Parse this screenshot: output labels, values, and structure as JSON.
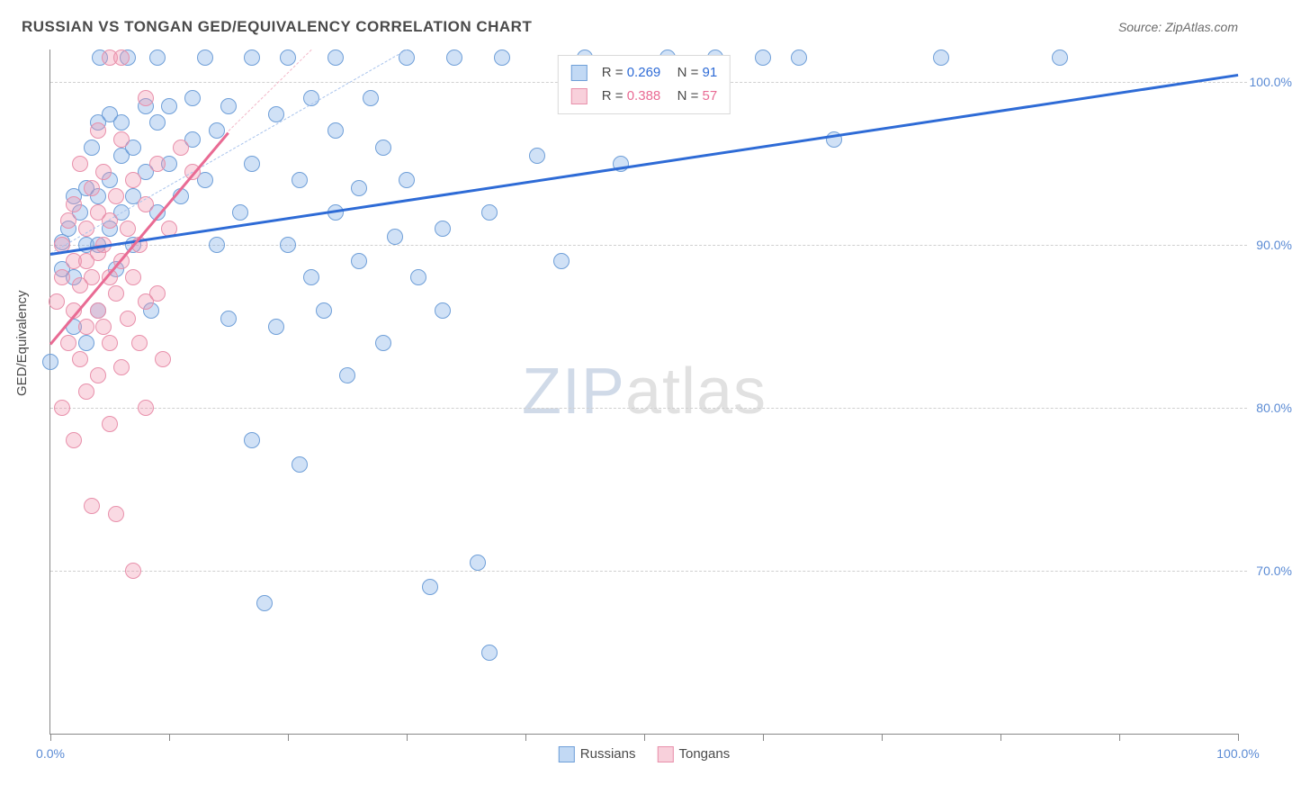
{
  "title": "RUSSIAN VS TONGAN GED/EQUIVALENCY CORRELATION CHART",
  "source": "Source: ZipAtlas.com",
  "yaxis_label": "GED/Equivalency",
  "watermark_a": "ZIP",
  "watermark_b": "atlas",
  "chart": {
    "type": "scatter",
    "xlim": [
      0,
      100
    ],
    "ylim": [
      60,
      102
    ],
    "background_color": "#ffffff",
    "grid_color": "#d0d0d0",
    "yticks": [
      {
        "v": 70,
        "label": "70.0%",
        "color": "#5b8bd4"
      },
      {
        "v": 80,
        "label": "80.0%",
        "color": "#5b8bd4"
      },
      {
        "v": 90,
        "label": "90.0%",
        "color": "#5b8bd4"
      },
      {
        "v": 100,
        "label": "100.0%",
        "color": "#5b8bd4"
      }
    ],
    "xticks": [
      0,
      10,
      20,
      30,
      40,
      50,
      60,
      70,
      80,
      90,
      100
    ],
    "xlabels": [
      {
        "v": 0,
        "label": "0.0%",
        "color": "#5b8bd4"
      },
      {
        "v": 100,
        "label": "100.0%",
        "color": "#5b8bd4"
      }
    ],
    "point_radius": 9,
    "point_border": 1,
    "series": [
      {
        "name": "Russians",
        "fill": "rgba(120,170,230,0.35)",
        "stroke": "#6f9fd8",
        "trend": {
          "x1": 0,
          "y1": 89.5,
          "x2": 100,
          "y2": 100.5,
          "color": "#2e6bd6",
          "width": 3,
          "dash": false
        },
        "trend_dash": {
          "x1": 0,
          "y1": 89.5,
          "x2": 30,
          "y2": 102,
          "color": "#a8c3ec",
          "width": 1,
          "dash": true
        },
        "points": [
          [
            0,
            82.8
          ],
          [
            1,
            88.5
          ],
          [
            1,
            90.2
          ],
          [
            1.5,
            91
          ],
          [
            2,
            85
          ],
          [
            2,
            88
          ],
          [
            2,
            93
          ],
          [
            2.5,
            92
          ],
          [
            3,
            84
          ],
          [
            3,
            90
          ],
          [
            3,
            93.5
          ],
          [
            3.5,
            96
          ],
          [
            4,
            86
          ],
          [
            4,
            90
          ],
          [
            4,
            93
          ],
          [
            4,
            97.5
          ],
          [
            4.2,
            101.5
          ],
          [
            5,
            91
          ],
          [
            5,
            94
          ],
          [
            5,
            98
          ],
          [
            5.5,
            88.5
          ],
          [
            6,
            92
          ],
          [
            6,
            95.5
          ],
          [
            6,
            97.5
          ],
          [
            6.5,
            101.5
          ],
          [
            7,
            90
          ],
          [
            7,
            93
          ],
          [
            7,
            96
          ],
          [
            8,
            94.5
          ],
          [
            8,
            98.5
          ],
          [
            8.5,
            86
          ],
          [
            9,
            92
          ],
          [
            9,
            97.5
          ],
          [
            9,
            101.5
          ],
          [
            10,
            95
          ],
          [
            10,
            98.5
          ],
          [
            11,
            93
          ],
          [
            12,
            96.5
          ],
          [
            12,
            99
          ],
          [
            13,
            94
          ],
          [
            13,
            101.5
          ],
          [
            14,
            90
          ],
          [
            14,
            97
          ],
          [
            15,
            85.5
          ],
          [
            15,
            98.5
          ],
          [
            16,
            92
          ],
          [
            17,
            78
          ],
          [
            17,
            95
          ],
          [
            17,
            101.5
          ],
          [
            18,
            68
          ],
          [
            19,
            85
          ],
          [
            19,
            98
          ],
          [
            20,
            90
          ],
          [
            20,
            101.5
          ],
          [
            21,
            94
          ],
          [
            21,
            76.5
          ],
          [
            22,
            88
          ],
          [
            22,
            99
          ],
          [
            23,
            86
          ],
          [
            24,
            92
          ],
          [
            24,
            97
          ],
          [
            24,
            101.5
          ],
          [
            25,
            82
          ],
          [
            26,
            93.5
          ],
          [
            26,
            89
          ],
          [
            27,
            99
          ],
          [
            28,
            84
          ],
          [
            28,
            96
          ],
          [
            29,
            90.5
          ],
          [
            30,
            94
          ],
          [
            30,
            101.5
          ],
          [
            31,
            88
          ],
          [
            32,
            69
          ],
          [
            33,
            91
          ],
          [
            33,
            86
          ],
          [
            34,
            101.5
          ],
          [
            36,
            70.5
          ],
          [
            37,
            92
          ],
          [
            37,
            65
          ],
          [
            38,
            101.5
          ],
          [
            41,
            95.5
          ],
          [
            43,
            89
          ],
          [
            45,
            101.5
          ],
          [
            48,
            95
          ],
          [
            52,
            101.5
          ],
          [
            56,
            101.5
          ],
          [
            60,
            101.5
          ],
          [
            63,
            101.5
          ],
          [
            66,
            96.5
          ],
          [
            75,
            101.5
          ],
          [
            85,
            101.5
          ]
        ]
      },
      {
        "name": "Tongans",
        "fill": "rgba(240,150,175,0.35)",
        "stroke": "#e890ab",
        "trend": {
          "x1": 0,
          "y1": 84,
          "x2": 15,
          "y2": 97,
          "color": "#e96b94",
          "width": 3,
          "dash": false
        },
        "trend_dash": {
          "x1": 15,
          "y1": 97,
          "x2": 22,
          "y2": 102,
          "color": "#f3b8c9",
          "width": 1,
          "dash": true
        },
        "points": [
          [
            0.5,
            86.5
          ],
          [
            1,
            88
          ],
          [
            1,
            80
          ],
          [
            1,
            90
          ],
          [
            1.5,
            84
          ],
          [
            1.5,
            91.5
          ],
          [
            2,
            78
          ],
          [
            2,
            86
          ],
          [
            2,
            89
          ],
          [
            2,
            92.5
          ],
          [
            2.5,
            83
          ],
          [
            2.5,
            87.5
          ],
          [
            2.5,
            95
          ],
          [
            3,
            81
          ],
          [
            3,
            85
          ],
          [
            3,
            89
          ],
          [
            3,
            91
          ],
          [
            3.5,
            74
          ],
          [
            3.5,
            88
          ],
          [
            3.5,
            93.5
          ],
          [
            4,
            82
          ],
          [
            4,
            86
          ],
          [
            4,
            89.5
          ],
          [
            4,
            92
          ],
          [
            4,
            97
          ],
          [
            4.5,
            85
          ],
          [
            4.5,
            90
          ],
          [
            4.5,
            94.5
          ],
          [
            5,
            79
          ],
          [
            5,
            84
          ],
          [
            5,
            88
          ],
          [
            5,
            91.5
          ],
          [
            5,
            101.5
          ],
          [
            5.5,
            73.5
          ],
          [
            5.5,
            87
          ],
          [
            5.5,
            93
          ],
          [
            6,
            82.5
          ],
          [
            6,
            89
          ],
          [
            6,
            96.5
          ],
          [
            6,
            101.5
          ],
          [
            6.5,
            85.5
          ],
          [
            6.5,
            91
          ],
          [
            7,
            70
          ],
          [
            7,
            88
          ],
          [
            7,
            94
          ],
          [
            7.5,
            84
          ],
          [
            7.5,
            90
          ],
          [
            8,
            80
          ],
          [
            8,
            86.5
          ],
          [
            8,
            92.5
          ],
          [
            8,
            99
          ],
          [
            9,
            87
          ],
          [
            9,
            95
          ],
          [
            9.5,
            83
          ],
          [
            10,
            91
          ],
          [
            11,
            96
          ],
          [
            12,
            94.5
          ]
        ]
      }
    ],
    "legend": {
      "items": [
        {
          "label": "Russians",
          "fill": "rgba(120,170,230,0.45)",
          "stroke": "#6f9fd8"
        },
        {
          "label": "Tongans",
          "fill": "rgba(240,150,175,0.45)",
          "stroke": "#e890ab"
        }
      ]
    },
    "stats": [
      {
        "swatch_fill": "rgba(120,170,230,0.45)",
        "swatch_stroke": "#6f9fd8",
        "r": "0.269",
        "n": "91",
        "color": "#2e6bd6"
      },
      {
        "swatch_fill": "rgba(240,150,175,0.45)",
        "swatch_stroke": "#e890ab",
        "r": "0.388",
        "n": "57",
        "color": "#e96b94"
      }
    ]
  }
}
